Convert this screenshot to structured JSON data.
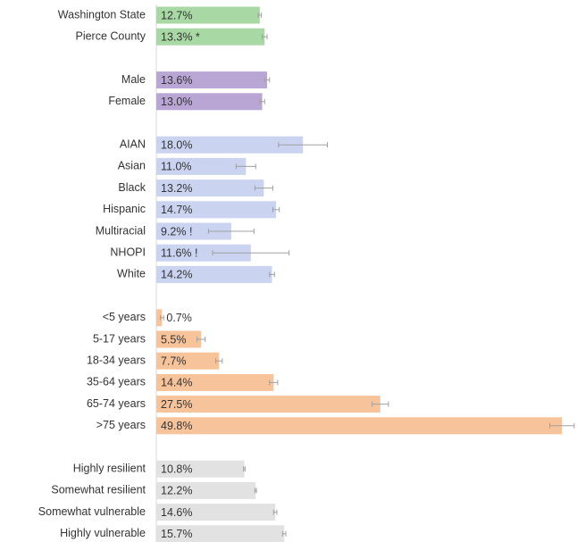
{
  "chart_data": {
    "type": "bar",
    "orientation": "horizontal",
    "categories": [
      "Washington State",
      "Pierce County",
      null,
      "Male",
      "Female",
      null,
      "AIAN",
      "Asian",
      "Black",
      "Hispanic",
      "Multiracial",
      "NHOPI",
      "White",
      null,
      "<5 years",
      "5-17 years",
      "18-34 years",
      "35-64 years",
      "65-74 years",
      ">75 years",
      null,
      "Highly resilient",
      "Somewhat resilient",
      "Somewhat vulnerable",
      "Highly vulnerable"
    ],
    "values": [
      12.7,
      13.3,
      null,
      13.6,
      13.0,
      null,
      18.0,
      11.0,
      13.2,
      14.7,
      9.2,
      11.6,
      14.2,
      null,
      0.7,
      5.5,
      7.7,
      14.4,
      27.5,
      49.8,
      null,
      10.8,
      12.2,
      14.6,
      15.7
    ],
    "value_labels": [
      "12.7%",
      "13.3% *",
      null,
      "13.6%",
      "13.0%",
      null,
      "18.0%",
      "11.0%",
      "13.2%",
      "14.7%",
      "9.2% !",
      "11.6% !",
      "14.2%",
      null,
      "0.7%",
      "5.5%",
      "7.7%",
      "14.4%",
      "27.5%",
      "49.8%",
      null,
      "10.8%",
      "12.2%",
      "14.6%",
      "15.7%"
    ],
    "errors": [
      0.2,
      0.3,
      null,
      0.3,
      0.3,
      null,
      3.0,
      1.2,
      1.1,
      0.4,
      2.8,
      4.7,
      0.3,
      null,
      0.2,
      0.5,
      0.4,
      0.5,
      1.0,
      1.5,
      null,
      0.1,
      0.1,
      0.2,
      0.2
    ],
    "colors": [
      "#a8d8a3",
      "#a8d8a3",
      null,
      "#b9a6d4",
      "#b9a6d4",
      null,
      "#cad3ef",
      "#cad3ef",
      "#cad3ef",
      "#cad3ef",
      "#cad3ef",
      "#cad3ef",
      "#cad3ef",
      null,
      "#f7c39b",
      "#f7c39b",
      "#f7c39b",
      "#f7c39b",
      "#f7c39b",
      "#f7c39b",
      null,
      "#e2e2e2",
      "#e2e2e2",
      "#e2e2e2",
      "#e2e2e2"
    ],
    "error_color": "#a0a0a0",
    "xlim": [
      0,
      50
    ]
  }
}
